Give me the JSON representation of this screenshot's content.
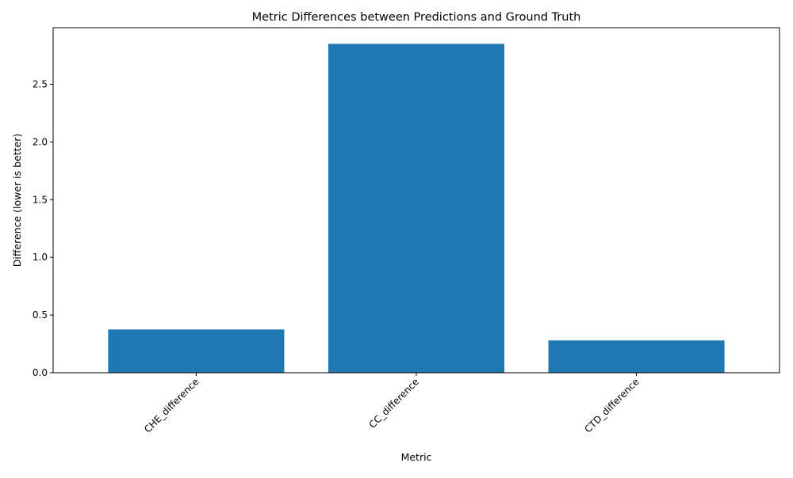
{
  "chart_data": {
    "type": "bar",
    "title": "Metric Differences between Predictions and Ground Truth",
    "xlabel": "Metric",
    "ylabel": "Difference (lower is better)",
    "categories": [
      "CHE_difference",
      "CC_difference",
      "CTD_difference"
    ],
    "values": [
      0.375,
      2.85,
      0.28
    ],
    "ylim": [
      0,
      2.99
    ],
    "yticks": [
      0.0,
      0.5,
      1.0,
      1.5,
      2.0,
      2.5
    ],
    "ytick_labels": [
      "0.0",
      "0.5",
      "1.0",
      "1.5",
      "2.0",
      "2.5"
    ],
    "xtick_rotation": 45,
    "bar_color": "#1f77b4",
    "grid": false,
    "legend": "none"
  }
}
